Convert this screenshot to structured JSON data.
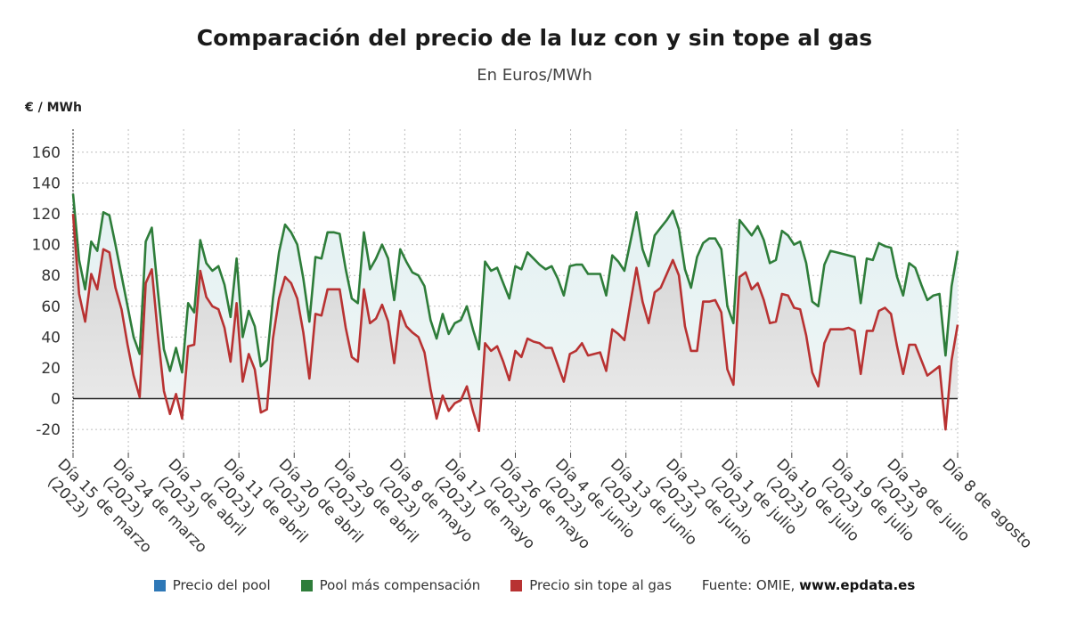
{
  "title": "Comparación del precio de la luz con y sin tope al gas",
  "subtitle": "En Euros/MWh",
  "unit_label": "€ / MWh",
  "legend": {
    "items": [
      {
        "label": "Precio del pool",
        "color": "#2e78b7"
      },
      {
        "label": "Pool más compensación",
        "color": "#2e7d3a"
      },
      {
        "label": "Precio sin tope al gas",
        "color": "#b83232"
      }
    ],
    "source_prefix": "Fuente: OMIE,",
    "source_site": "www.epdata.es"
  },
  "chart_data": {
    "type": "line",
    "title": "Comparación del precio de la luz con y sin tope al gas",
    "subtitle": "En Euros/MWh",
    "ylabel": "€ / MWh",
    "ylim": [
      -35,
      175
    ],
    "yticks": [
      -20,
      0,
      20,
      40,
      60,
      80,
      100,
      120,
      140,
      160
    ],
    "grid": true,
    "legend_position": "bottom",
    "x_start": "Día 15 de marzo (2023)",
    "x_end": "Día 8 de agosto (2023)",
    "x_tick_labels": [
      "Día 15 de marzo (2023)",
      "Día 24 de marzo (2023)",
      "Día 2 de abril (2023)",
      "Día 11 de abril (2023)",
      "Día 20 de abril (2023)",
      "Día 29 de abril (2023)",
      "Día 8 de mayo (2023)",
      "Día 17 de mayo (2023)",
      "Día 26 de mayo (2023)",
      "Día 4 de junio (2023)",
      "Día 13 de junio (2023)",
      "Día 22 de junio (2023)",
      "Día 1 de julio (2023)",
      "Día 10 de julio (2023)",
      "Día 19 de julio (2023)",
      "Día 28 de julio (2023)",
      "Día 8 de agosto"
    ],
    "series": [
      {
        "name": "Pool más compensación",
        "color": "#2e7d3a",
        "values": [
          133,
          90,
          71,
          102,
          96,
          121,
          119,
          100,
          80,
          60,
          40,
          29,
          102,
          111,
          70,
          32,
          18,
          33,
          17,
          62,
          56,
          103,
          88,
          83,
          86,
          74,
          53,
          91,
          40,
          57,
          47,
          21,
          25,
          65,
          95,
          113,
          108,
          100,
          78,
          50,
          92,
          91,
          108,
          108,
          107,
          84,
          65,
          62,
          108,
          84,
          91,
          100,
          91,
          64,
          97,
          89,
          82,
          80,
          73,
          51,
          39,
          55,
          42,
          49,
          51,
          60,
          45,
          32,
          89,
          83,
          85,
          75,
          65,
          86,
          84,
          95,
          91,
          87,
          84,
          86,
          78,
          67,
          86,
          87,
          87,
          81,
          81,
          81,
          67,
          93,
          89,
          83,
          102,
          121,
          97,
          86,
          106,
          111,
          116,
          122,
          110,
          84,
          72,
          92,
          101,
          104,
          104,
          97,
          60,
          49,
          116,
          111,
          106,
          112,
          103,
          88,
          90,
          109,
          106,
          100,
          102,
          88,
          63,
          60,
          87,
          96,
          95,
          94,
          93,
          92,
          62,
          91,
          90,
          101,
          99,
          98,
          79,
          67,
          88,
          85,
          74,
          64,
          67,
          68,
          28,
          73,
          96
        ]
      },
      {
        "name": "Precio sin tope al gas",
        "color": "#b83232",
        "values": [
          120,
          68,
          50,
          81,
          71,
          97,
          95,
          72,
          58,
          35,
          15,
          1,
          75,
          84,
          42,
          5,
          -10,
          3,
          -13,
          34,
          35,
          83,
          66,
          60,
          58,
          46,
          24,
          62,
          11,
          29,
          19,
          -9,
          -7,
          39,
          65,
          79,
          75,
          65,
          43,
          13,
          55,
          54,
          71,
          71,
          71,
          46,
          27,
          24,
          71,
          49,
          52,
          61,
          50,
          23,
          57,
          47,
          43,
          40,
          30,
          6,
          -13,
          2,
          -8,
          -3,
          -1,
          8,
          -8,
          -21,
          36,
          31,
          34,
          24,
          12,
          31,
          27,
          39,
          37,
          36,
          33,
          33,
          22,
          11,
          29,
          31,
          36,
          28,
          29,
          30,
          18,
          45,
          42,
          38,
          62,
          85,
          63,
          49,
          69,
          72,
          81,
          90,
          80,
          47,
          31,
          31,
          63,
          63,
          64,
          56,
          19,
          9,
          79,
          82,
          71,
          75,
          64,
          49,
          50,
          68,
          67,
          59,
          58,
          41,
          17,
          8,
          36,
          45,
          45,
          45,
          46,
          44,
          16,
          44,
          44,
          57,
          59,
          55,
          34,
          16,
          35,
          35,
          25,
          15,
          18,
          21,
          -20,
          25,
          48
        ]
      },
      {
        "name": "Precio del pool",
        "color": "#2e78b7",
        "values": []
      }
    ]
  }
}
